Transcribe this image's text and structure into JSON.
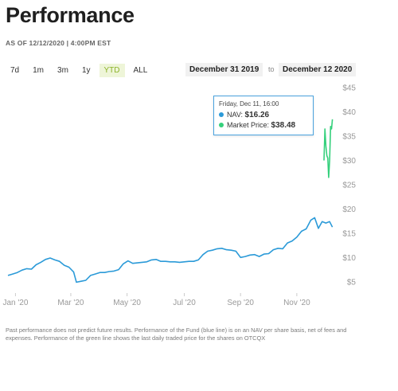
{
  "header": {
    "title": "Performance",
    "as_of": "AS OF 12/12/2020 | 4:00PM EST"
  },
  "ranges": [
    "7d",
    "1m",
    "3m",
    "1y",
    "YTD",
    "ALL"
  ],
  "active_range": "YTD",
  "date_range": {
    "start": "December 31 2019",
    "separator": "to",
    "end": "December 12 2020"
  },
  "tooltip": {
    "date": "Friday, Dec 11, 16:00",
    "nav_label": "NAV:",
    "nav_value": "$16.26",
    "market_label": "Market Price:",
    "market_value": "$38.48"
  },
  "colors": {
    "nav": "#2b9ad8",
    "market": "#35d07c",
    "active_range": "#8cb32a",
    "tooltip_border": "#4aa3df"
  },
  "footnote": "Past performance does not predict future results. Performance of the Fund (blue line) is on an NAV per share basis, net of fees and expenses. Performance of the green line shows the last daily traded price for the shares on OTCQX",
  "chart_data": {
    "type": "line",
    "title": "",
    "xlabel": "",
    "ylabel": "",
    "x_tick_labels": [
      "Jan '20",
      "Mar '20",
      "May '20",
      "Jul '20",
      "Sep '20",
      "Nov '20"
    ],
    "y_tick_labels": [
      "$5",
      "$10",
      "$15",
      "$20",
      "$25",
      "$30",
      "$35",
      "$40",
      "$45"
    ],
    "y_ticks": [
      5,
      10,
      15,
      20,
      25,
      30,
      35,
      40,
      45
    ],
    "ylim": [
      3,
      46
    ],
    "xlim": [
      "2019-12-31",
      "2020-12-13"
    ],
    "grid": false,
    "series": [
      {
        "name": "NAV",
        "color": "#2b9ad8",
        "points": [
          [
            "2019-12-31",
            6.3
          ],
          [
            "2020-01-05",
            6.6
          ],
          [
            "2020-01-10",
            6.9
          ],
          [
            "2020-01-15",
            7.4
          ],
          [
            "2020-01-20",
            7.7
          ],
          [
            "2020-01-25",
            7.6
          ],
          [
            "2020-01-30",
            8.5
          ],
          [
            "2020-02-04",
            9.0
          ],
          [
            "2020-02-09",
            9.6
          ],
          [
            "2020-02-14",
            9.9
          ],
          [
            "2020-02-19",
            9.5
          ],
          [
            "2020-02-24",
            9.2
          ],
          [
            "2020-02-29",
            8.4
          ],
          [
            "2020-03-05",
            8.0
          ],
          [
            "2020-03-10",
            7.0
          ],
          [
            "2020-03-13",
            4.9
          ],
          [
            "2020-03-18",
            5.1
          ],
          [
            "2020-03-23",
            5.3
          ],
          [
            "2020-03-28",
            6.3
          ],
          [
            "2020-04-02",
            6.6
          ],
          [
            "2020-04-07",
            6.9
          ],
          [
            "2020-04-12",
            6.9
          ],
          [
            "2020-04-17",
            7.1
          ],
          [
            "2020-04-22",
            7.2
          ],
          [
            "2020-04-27",
            7.5
          ],
          [
            "2020-05-02",
            8.7
          ],
          [
            "2020-05-07",
            9.3
          ],
          [
            "2020-05-12",
            8.8
          ],
          [
            "2020-05-17",
            8.9
          ],
          [
            "2020-05-22",
            9.0
          ],
          [
            "2020-05-27",
            9.1
          ],
          [
            "2020-06-01",
            9.5
          ],
          [
            "2020-06-06",
            9.6
          ],
          [
            "2020-06-11",
            9.2
          ],
          [
            "2020-06-16",
            9.2
          ],
          [
            "2020-06-21",
            9.1
          ],
          [
            "2020-06-26",
            9.1
          ],
          [
            "2020-07-01",
            9.0
          ],
          [
            "2020-07-06",
            9.1
          ],
          [
            "2020-07-11",
            9.2
          ],
          [
            "2020-07-16",
            9.2
          ],
          [
            "2020-07-21",
            9.5
          ],
          [
            "2020-07-26",
            10.6
          ],
          [
            "2020-07-31",
            11.3
          ],
          [
            "2020-08-05",
            11.5
          ],
          [
            "2020-08-10",
            11.8
          ],
          [
            "2020-08-15",
            11.9
          ],
          [
            "2020-08-20",
            11.6
          ],
          [
            "2020-08-25",
            11.5
          ],
          [
            "2020-08-30",
            11.3
          ],
          [
            "2020-09-04",
            10.0
          ],
          [
            "2020-09-09",
            10.2
          ],
          [
            "2020-09-14",
            10.5
          ],
          [
            "2020-09-19",
            10.6
          ],
          [
            "2020-09-24",
            10.2
          ],
          [
            "2020-09-29",
            10.7
          ],
          [
            "2020-10-04",
            10.8
          ],
          [
            "2020-10-09",
            11.6
          ],
          [
            "2020-10-14",
            11.9
          ],
          [
            "2020-10-19",
            11.8
          ],
          [
            "2020-10-24",
            13.0
          ],
          [
            "2020-10-29",
            13.4
          ],
          [
            "2020-11-03",
            14.2
          ],
          [
            "2020-11-08",
            15.4
          ],
          [
            "2020-11-13",
            15.9
          ],
          [
            "2020-11-18",
            17.7
          ],
          [
            "2020-11-22",
            18.2
          ],
          [
            "2020-11-26",
            16.0
          ],
          [
            "2020-11-30",
            17.4
          ],
          [
            "2020-12-04",
            17.1
          ],
          [
            "2020-12-08",
            17.4
          ],
          [
            "2020-12-11",
            16.26
          ]
        ]
      },
      {
        "name": "Market Price",
        "color": "#35d07c",
        "points": [
          [
            "2020-12-02",
            30.0
          ],
          [
            "2020-12-03",
            36.5
          ],
          [
            "2020-12-04",
            33.0
          ],
          [
            "2020-12-05",
            31.0
          ],
          [
            "2020-12-06",
            30.5
          ],
          [
            "2020-12-07",
            26.5
          ],
          [
            "2020-12-08",
            30.0
          ],
          [
            "2020-12-09",
            37.0
          ],
          [
            "2020-12-10",
            36.5
          ],
          [
            "2020-12-11",
            38.48
          ]
        ]
      }
    ]
  }
}
